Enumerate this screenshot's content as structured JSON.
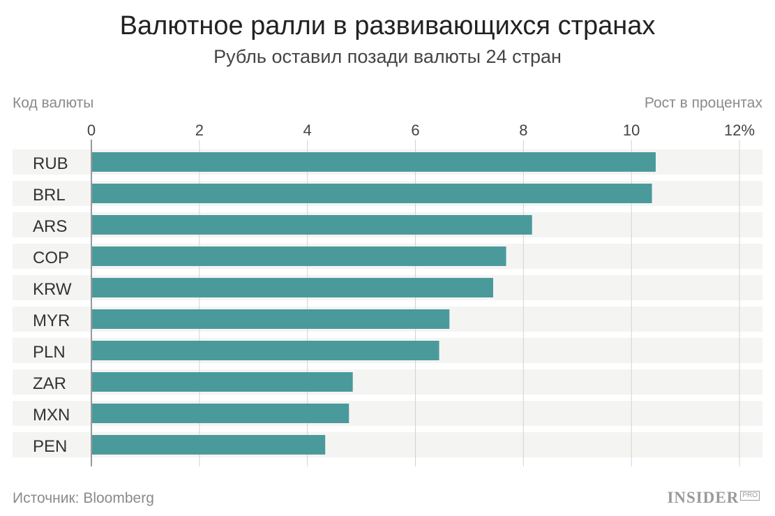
{
  "chart_data": {
    "type": "bar",
    "orientation": "horizontal",
    "title": "Валютное ралли в развивающихся странах",
    "subtitle": "Рубль оставил позади валюты 24 стран",
    "ylabel": "Код валюты",
    "xlabel": "Рост в процентах",
    "categories": [
      "RUB",
      "BRL",
      "ARS",
      "COP",
      "KRW",
      "MYR",
      "PLN",
      "ZAR",
      "MXN",
      "PEN"
    ],
    "values": [
      10.45,
      10.38,
      8.16,
      7.68,
      7.44,
      6.63,
      6.44,
      4.84,
      4.77,
      4.33
    ],
    "xlim": [
      0,
      12
    ],
    "xticks": [
      "0",
      "2",
      "4",
      "6",
      "8",
      "10",
      "12%"
    ],
    "grid": true,
    "bar_color": "#4a9a9c"
  },
  "source": "Источник: Bloomberg",
  "logo": {
    "main": "INSIDER",
    "badge": "PRO"
  }
}
